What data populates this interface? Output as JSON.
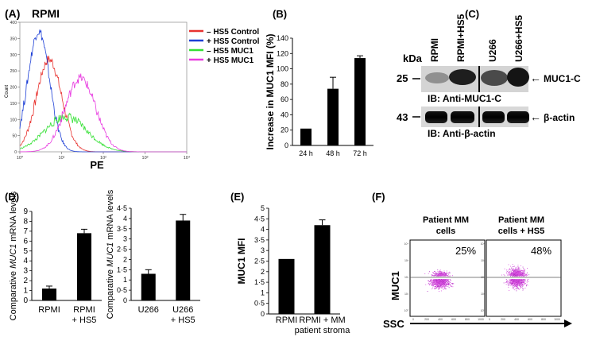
{
  "figure": {
    "panelA": {
      "letter": "(A)",
      "title": "RPMI",
      "xlabel": "PE",
      "ylabel": "Count",
      "legend": [
        {
          "label": "– HS5 Control",
          "color": "#e8322f"
        },
        {
          "label": "+ HS5 Control",
          "color": "#1d3fd6"
        },
        {
          "label": "– HS5 MUC1",
          "color": "#33e033"
        },
        {
          "label": "+ HS5 MUC1",
          "color": "#e83ae0"
        }
      ]
    },
    "panelB": {
      "letter": "(B)"
    },
    "panelC": {
      "letter": "(C)",
      "kda": "kDa",
      "lanes": [
        "RPMI",
        "RPMI+HS5",
        "U266",
        "U266+HS5"
      ],
      "marker25": "25",
      "marker43": "43",
      "muc1_label": "MUC1-C",
      "actin_label": "β-actin",
      "ib_muc1": "IB: Anti-MUC1-C",
      "ib_actin": "IB: Anti-β-actin",
      "arrow": "←"
    },
    "panelD": {
      "letter": "(D)"
    },
    "panelE": {
      "letter": "(E)"
    },
    "panelF": {
      "letter": "(F)",
      "label1": [
        "Patient MM",
        "cells"
      ],
      "label2": [
        "Patient MM",
        "cells + HS5"
      ],
      "pct1": "25%",
      "pct2": "48%",
      "ylabel": "MUC1",
      "xlabel": "SSC"
    }
  },
  "chart_data": [
    {
      "id": "A",
      "type": "histogram-overlay",
      "title": "RPMI",
      "xlabel": "PE",
      "ylabel": "Count",
      "xscale": "log",
      "xlim": [
        1,
        10000
      ],
      "ylim": [
        0,
        400
      ],
      "yticks": [
        0,
        50,
        100,
        150,
        200,
        250,
        300,
        350,
        400
      ],
      "xticks": [
        "10⁰",
        "10¹",
        "10²",
        "10³",
        "10⁴"
      ],
      "series": [
        {
          "name": "– HS5 Control",
          "color": "#e8322f",
          "peak_decade": 0.7,
          "peak_count": 285,
          "width": 0.3
        },
        {
          "name": "+ HS5 Control",
          "color": "#1d3fd6",
          "peak_decade": 0.45,
          "peak_count": 372,
          "width": 0.26
        },
        {
          "name": "– HS5 MUC1",
          "color": "#33e033",
          "peak_decade": 1.1,
          "peak_count": 108,
          "width": 0.5
        },
        {
          "name": "+ HS5 MUC1",
          "color": "#e83ae0",
          "peak_decade": 1.45,
          "peak_count": 228,
          "width": 0.36
        }
      ]
    },
    {
      "id": "B",
      "type": "bar",
      "categories": [
        "24 h",
        "48 h",
        "72 h"
      ],
      "values": [
        22,
        74,
        114
      ],
      "errors": [
        0,
        15,
        3
      ],
      "ylabel": "Increase in MUC1 MFI (%)",
      "ylim": [
        0,
        140
      ],
      "yticks": [
        0,
        20,
        40,
        60,
        80,
        100,
        120,
        140
      ]
    },
    {
      "id": "D1",
      "type": "bar",
      "categories": [
        [
          "RPMI"
        ],
        [
          "RPMI",
          "+ HS5"
        ]
      ],
      "values": [
        1.2,
        6.8
      ],
      "errors": [
        0.25,
        0.4
      ],
      "ylabel_parts": [
        "Comparative ",
        "MUC1",
        " mRNA levels"
      ],
      "ylim": [
        0,
        9
      ],
      "yticks": [
        0,
        1,
        2,
        3,
        4,
        5,
        6,
        7,
        8,
        9
      ],
      "yticklabels": [
        "0",
        "1",
        "2",
        "3",
        "4",
        "5",
        "6",
        "7",
        "8",
        "9"
      ]
    },
    {
      "id": "D2",
      "type": "bar",
      "categories": [
        [
          "U266"
        ],
        [
          "U266",
          "+ HS5"
        ]
      ],
      "values": [
        1.3,
        3.9
      ],
      "errors": [
        0.2,
        0.3
      ],
      "ylabel_parts": [
        "Comparative ",
        "MUC1",
        " mRNA levels"
      ],
      "ylim": [
        0,
        4.5
      ],
      "yticks": [
        0,
        0.5,
        1,
        1.5,
        2,
        2.5,
        3,
        3.5,
        4,
        4.5
      ],
      "yticklabels": [
        "0",
        "0·5",
        "1",
        "1·5",
        "2",
        "2·5",
        "3",
        "3·5",
        "4",
        "4·5"
      ]
    },
    {
      "id": "E",
      "type": "bar",
      "categories": [
        [
          "RPMI"
        ],
        [
          "RPMI + MM",
          "patient stroma"
        ]
      ],
      "values": [
        2.6,
        4.2
      ],
      "errors": [
        0,
        0.25
      ],
      "ylabel": "MUC1 MFI",
      "ylim": [
        0,
        5
      ],
      "yticks": [
        0,
        0.5,
        1,
        1.5,
        2,
        2.5,
        3,
        3.5,
        4,
        4.5,
        5
      ],
      "yticklabels": [
        "0",
        "0·5",
        "1",
        "1·5",
        "2",
        "2·5",
        "3",
        "3·5",
        "4",
        "4·5",
        "5"
      ]
    },
    {
      "id": "F",
      "type": "scatter",
      "xlabel": "SSC",
      "ylabel": "MUC1",
      "plots": [
        {
          "name": "Patient MM cells",
          "percent_above_gate": 25
        },
        {
          "name": "Patient MM cells + HS5",
          "percent_above_gate": 48
        }
      ]
    }
  ]
}
